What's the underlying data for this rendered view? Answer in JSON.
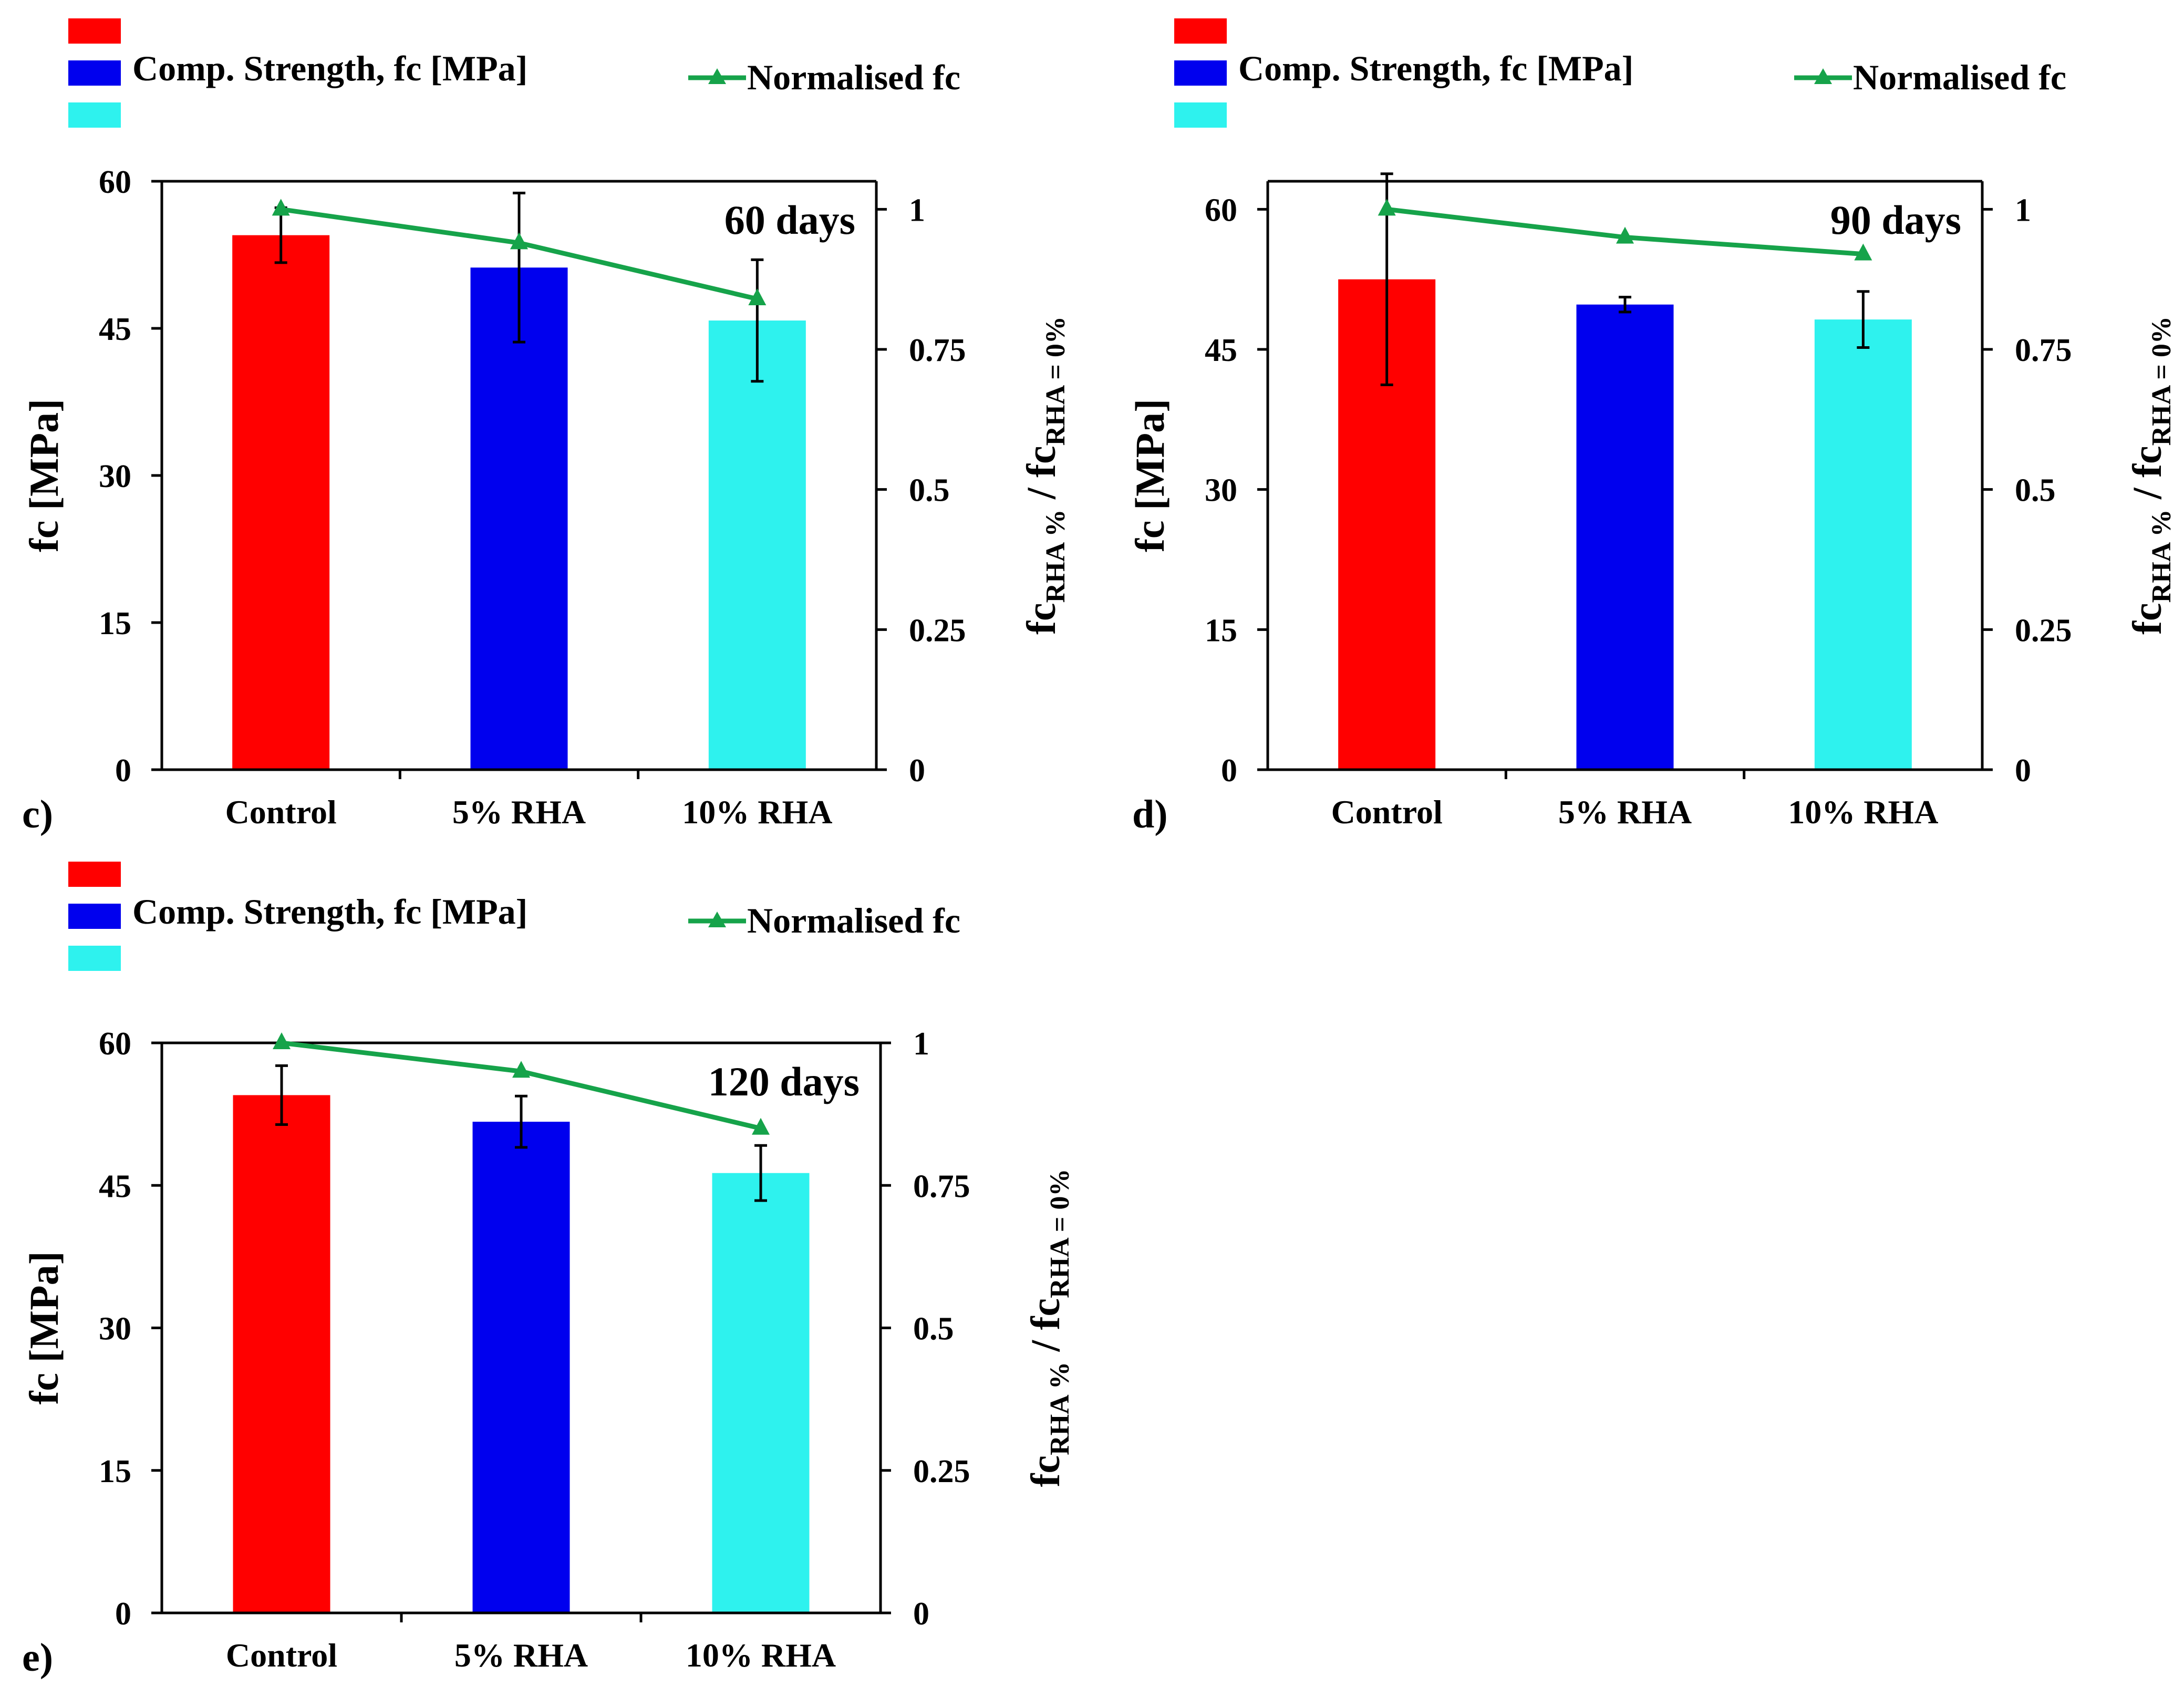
{
  "figure": {
    "shared": {
      "categories": [
        "Control",
        "5% RHA",
        "10% RHA"
      ],
      "bar_colors": [
        "#ff0000",
        "#0000ee",
        "#2ef2ee"
      ],
      "line_color": "#16a34a",
      "legend_bar_label": "Comp. Strength, fc [MPa]",
      "legend_line_label": "Normalised fc",
      "ylabel_left": "fc [MPa]",
      "ylabel_right_main1": "fc",
      "ylabel_right_sub1": "RHA %",
      "ylabel_right_mid": " / fc",
      "ylabel_right_sub2": "RHA = 0%"
    }
  },
  "chart_data": [
    {
      "panel": "c)",
      "type": "bar",
      "title": "60 days",
      "categories": [
        "Control",
        "5% RHA",
        "10% RHA"
      ],
      "series": [
        {
          "name": "Comp. Strength, fc [MPa]",
          "axis": "left",
          "values": [
            54.5,
            51.2,
            45.8
          ],
          "errors": [
            2.8,
            7.6,
            6.2
          ]
        },
        {
          "name": "Normalised fc",
          "axis": "right",
          "type": "line",
          "values": [
            1.0,
            0.94,
            0.84
          ]
        }
      ],
      "ylim": [
        0,
        60
      ],
      "yticks": [
        "0",
        "15",
        "30",
        "45",
        "60"
      ],
      "y2lim": [
        0,
        1.05
      ],
      "y2ticks": [
        "0",
        "0.25",
        "0.5",
        "0.75",
        "1"
      ],
      "xlabel": "",
      "ylabel": "fc [MPa]"
    },
    {
      "panel": "d)",
      "type": "bar",
      "title": "90 days",
      "categories": [
        "Control",
        "5% RHA",
        "10% RHA"
      ],
      "series": [
        {
          "name": "Comp. Strength, fc [MPa]",
          "axis": "left",
          "values": [
            52.5,
            49.8,
            48.2
          ],
          "errors": [
            11.3,
            0.8,
            3.0
          ]
        },
        {
          "name": "Normalised fc",
          "axis": "right",
          "type": "line",
          "values": [
            1.0,
            0.95,
            0.92
          ]
        }
      ],
      "ylim": [
        0,
        63
      ],
      "yticks": [
        "0",
        "15",
        "30",
        "45",
        "60"
      ],
      "y2lim": [
        0,
        1.05
      ],
      "y2ticks": [
        "0",
        "0.25",
        "0.5",
        "0.75",
        "1"
      ],
      "xlabel": "",
      "ylabel": "fc [MPa]"
    },
    {
      "panel": "e)",
      "type": "bar",
      "title": "120 days",
      "categories": [
        "Control",
        "5% RHA",
        "10% RHA"
      ],
      "series": [
        {
          "name": "Comp. Strength, fc [MPa]",
          "axis": "left",
          "values": [
            54.5,
            51.7,
            46.3
          ],
          "errors": [
            3.1,
            2.7,
            2.9
          ]
        },
        {
          "name": "Normalised fc",
          "axis": "right",
          "type": "line",
          "values": [
            1.0,
            0.95,
            0.85
          ]
        }
      ],
      "ylim": [
        0,
        60
      ],
      "yticks": [
        "0",
        "15",
        "30",
        "45",
        "60"
      ],
      "y2lim": [
        0,
        1.0
      ],
      "y2ticks": [
        "0",
        "0.25",
        "0.5",
        "0.75",
        "1"
      ],
      "xlabel": "",
      "ylabel": "fc [MPa]"
    }
  ]
}
